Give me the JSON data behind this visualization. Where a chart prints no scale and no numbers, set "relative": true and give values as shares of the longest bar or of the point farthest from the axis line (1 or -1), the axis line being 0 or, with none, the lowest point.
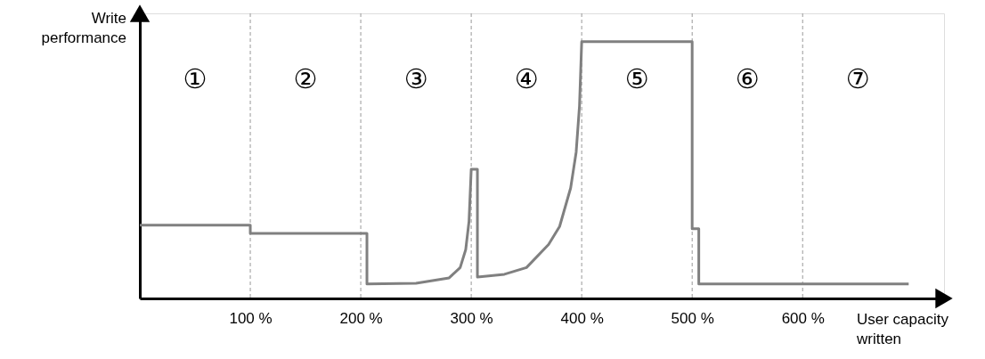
{
  "chart_data": {
    "type": "line",
    "relative": true,
    "xlabel": "User capacity written",
    "ylabel": "Write performance",
    "xlim": [
      0,
      728
    ],
    "xticks": [
      {
        "value": 100,
        "label": "100 %"
      },
      {
        "value": 200,
        "label": "200 %"
      },
      {
        "value": 300,
        "label": "300 %"
      },
      {
        "value": 400,
        "label": "400 %"
      },
      {
        "value": 500,
        "label": "500 %"
      },
      {
        "value": 600,
        "label": "600 %"
      }
    ],
    "grid": false,
    "line_style": "solid",
    "marker": "none",
    "series": [
      {
        "color": "#808080",
        "x": [
          0,
          100,
          100,
          205.6,
          205.6,
          250,
          280,
          290,
          295,
          298,
          300,
          305.6,
          305.6,
          330,
          350,
          370,
          380,
          390,
          395,
          398,
          400,
          500,
          500,
          506,
          506,
          696
        ],
        "values": [
          0.285,
          0.285,
          0.253,
          0.253,
          0.056,
          0.059,
          0.08,
          0.12,
          0.19,
          0.3,
          0.503,
          0.503,
          0.083,
          0.094,
          0.12,
          0.21,
          0.28,
          0.43,
          0.57,
          0.75,
          1,
          1,
          0.271,
          0.271,
          0.056,
          0.056
        ]
      }
    ],
    "ref_lines": [
      {
        "axis": "x",
        "value": 100,
        "color": "#999999",
        "line_style": "dashed"
      },
      {
        "axis": "x",
        "value": 200,
        "color": "#999999",
        "line_style": "dashed"
      },
      {
        "axis": "x",
        "value": 300,
        "color": "#999999",
        "line_style": "dashed"
      },
      {
        "axis": "x",
        "value": 400,
        "color": "#999999",
        "line_style": "dashed"
      },
      {
        "axis": "x",
        "value": 500,
        "color": "#999999",
        "line_style": "dashed"
      },
      {
        "axis": "x",
        "value": 600,
        "color": "#999999",
        "line_style": "dashed"
      }
    ],
    "annotations": [
      "①",
      "②",
      "③",
      "④",
      "⑤",
      "⑥",
      "⑦"
    ]
  }
}
